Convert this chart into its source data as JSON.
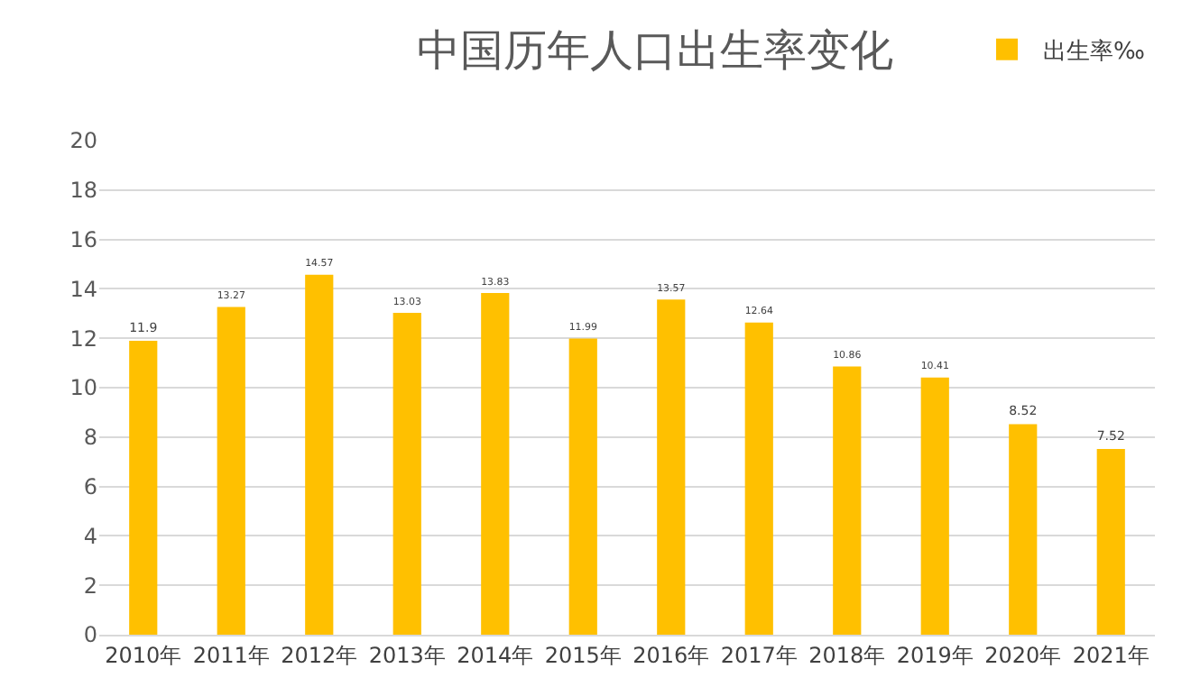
{
  "chart_data": {
    "type": "bar",
    "title": "中国历年人口出生率变化",
    "categories": [
      "2010年",
      "2011年",
      "2012年",
      "2013年",
      "2014年",
      "2015年",
      "2016年",
      "2017年",
      "2018年",
      "2019年",
      "2020年",
      "2021年"
    ],
    "series": [
      {
        "name": "出生率‰",
        "color": "#ffc000",
        "values": [
          11.9,
          13.27,
          14.57,
          13.03,
          13.83,
          11.99,
          13.57,
          12.64,
          10.86,
          10.41,
          8.52,
          7.52
        ]
      }
    ],
    "ylim": [
      0,
      20
    ],
    "yticks": [
      0,
      2,
      4,
      6,
      8,
      10,
      12,
      14,
      16,
      18,
      20
    ],
    "grid": "y",
    "legend": "top right",
    "data_labels": true
  }
}
